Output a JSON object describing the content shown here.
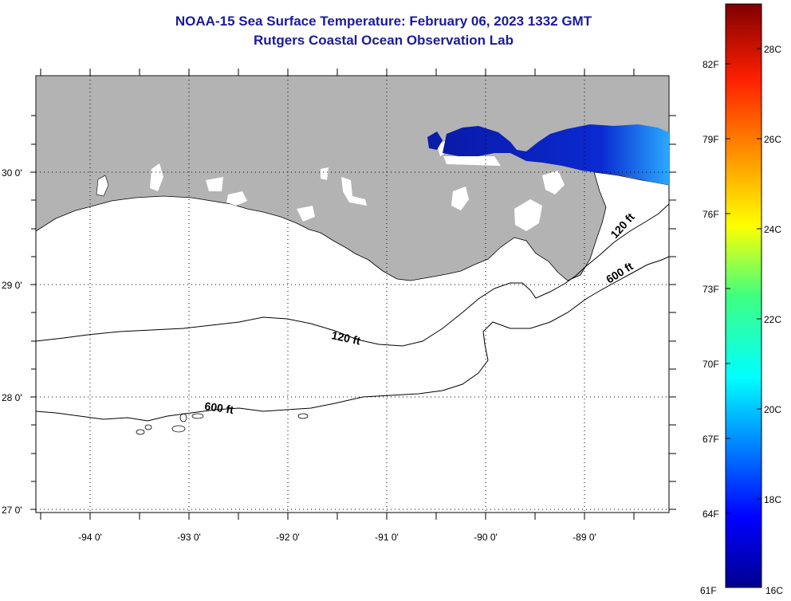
{
  "header": {
    "title": "NOAA-15 Sea Surface Temperature:  February 06, 2023 1332 GMT",
    "subtitle": "Rutgers Coastal Ocean Observation Lab"
  },
  "map": {
    "lat_labels": [
      "30 0'",
      "29 0'",
      "28 0'",
      "27 0'"
    ],
    "lon_labels": [
      "-94 0'",
      "-93 0'",
      "-92 0'",
      "-91 0'",
      "-90 0'",
      "-89 0'"
    ],
    "contours": [
      {
        "label": "120 ft",
        "depth_ft": 120
      },
      {
        "label": "600 ft",
        "depth_ft": 600
      }
    ],
    "contour_labels": [
      "120 ft",
      "120 ft",
      "600 ft",
      "600 ft"
    ],
    "colors": {
      "land": "#b3b3b3",
      "ocean_no_data": "#ffffff",
      "sst_cold": "#0a1da8",
      "contour": "#000000",
      "title": "#1a1aa0"
    }
  },
  "colorbar": {
    "fahrenheit_labels": [
      "82F",
      "79F",
      "76F",
      "73F",
      "70F",
      "67F",
      "64F",
      "61F"
    ],
    "celsius_labels": [
      "28C",
      "26C",
      "24C",
      "22C",
      "20C",
      "18C",
      "16C"
    ],
    "range_c": [
      16,
      29
    ],
    "range_f": [
      61,
      84
    ]
  }
}
